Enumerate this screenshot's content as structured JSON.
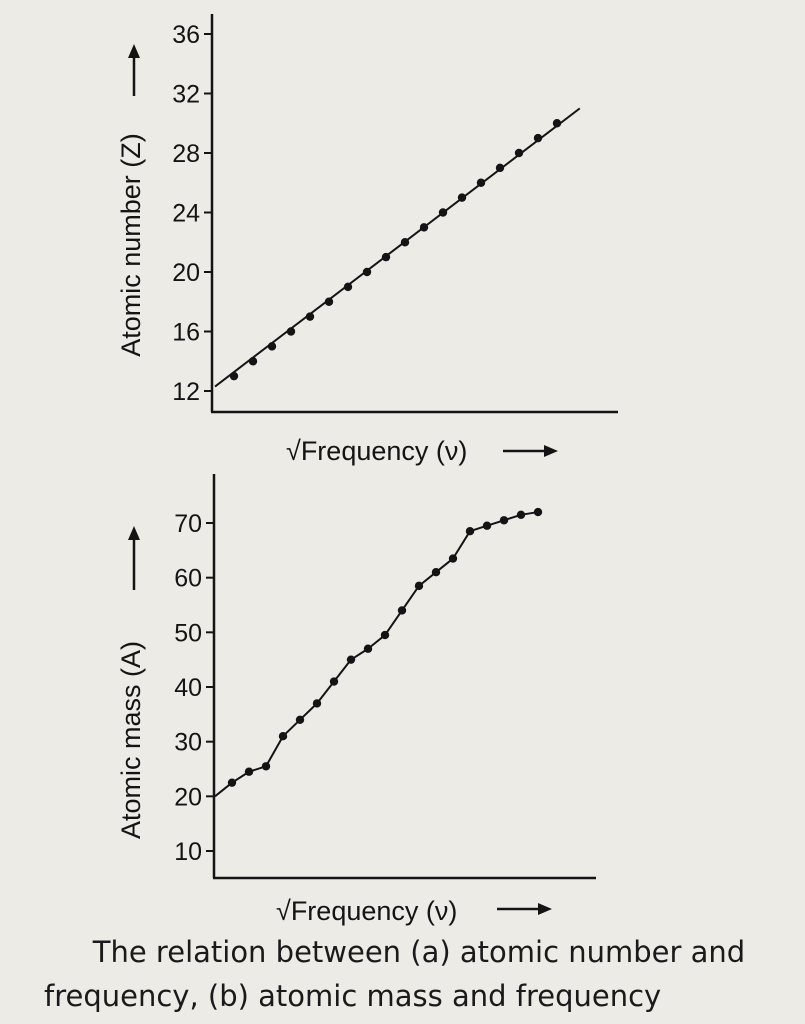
{
  "colors": {
    "ink": "#141414",
    "paper": "#ecebe6"
  },
  "chart_data": [
    {
      "type": "scatter",
      "xlabel": "√Frequency (ν)",
      "ylabel": "Atomic number (Z)",
      "ylim": [
        11,
        37
      ],
      "yticks": [
        12,
        16,
        20,
        24,
        28,
        32,
        36
      ],
      "x": [
        1,
        2,
        3,
        4,
        5,
        6,
        7,
        8,
        9,
        10,
        11,
        12,
        13,
        14,
        15,
        16,
        17,
        18
      ],
      "series": [
        {
          "values": [
            13,
            14,
            15,
            16,
            17,
            18,
            19,
            20,
            21,
            22,
            23,
            24,
            25,
            26,
            27,
            28,
            29,
            30
          ]
        }
      ],
      "fit_line": {
        "x": [
          0,
          19.2
        ],
        "y": [
          12.3,
          31
        ]
      },
      "grid": false
    },
    {
      "type": "line",
      "xlabel": "√Frequency (ν)",
      "ylabel": "Atomic mass (A)",
      "ylim": [
        6,
        79
      ],
      "yticks": [
        10,
        20,
        30,
        40,
        50,
        60,
        70
      ],
      "x": [
        1,
        2,
        3,
        4,
        5,
        6,
        7,
        8,
        9,
        10,
        11,
        12,
        13,
        14,
        15,
        16,
        17,
        18,
        19
      ],
      "series": [
        {
          "values": [
            22.5,
            24.5,
            25.5,
            31,
            34,
            37,
            41,
            45,
            47,
            49.5,
            54,
            58.5,
            61,
            63.5,
            68.5,
            69.5,
            70.5,
            71.5,
            72
          ]
        }
      ],
      "start_point": {
        "x": 0,
        "y": 20
      },
      "grid": false
    }
  ],
  "caption": {
    "line1": "The relation between (a) atomic number and",
    "line2": "frequency, (b) atomic mass and frequency"
  }
}
